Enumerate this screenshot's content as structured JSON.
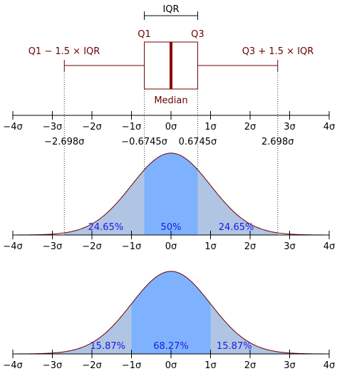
{
  "colors": {
    "dark_red": "#6b0000",
    "median_red": "#8b0000",
    "axis": "#000000",
    "light_blue": "#b0c4e4",
    "mid_blue": "#7eb2ff",
    "pct_text": "#1a1ae6"
  },
  "box_plot": {
    "iqr_label": "IQR",
    "q1_label": "Q1",
    "q3_label": "Q3",
    "lower_whisker_label": "Q1 − 1.5 × IQR",
    "upper_whisker_label": "Q3 + 1.5 × IQR",
    "median_label": "Median",
    "q1_value": -0.6745,
    "q3_value": 0.6745,
    "median_value": 0,
    "lower_whisker_value": -2.698,
    "upper_whisker_value": 2.698
  },
  "value_labels": [
    {
      "x": -2.698,
      "text": "−2.698σ"
    },
    {
      "x": -0.6745,
      "text": "−0.6745σ"
    },
    {
      "x": 0.6745,
      "text": "0.6745σ"
    },
    {
      "x": 2.698,
      "text": "2.698σ"
    }
  ],
  "axis_ticks": [
    {
      "x": -4,
      "label": "−4σ"
    },
    {
      "x": -3,
      "label": "−3σ"
    },
    {
      "x": -2,
      "label": "−2σ"
    },
    {
      "x": -1,
      "label": "−1σ"
    },
    {
      "x": 0,
      "label": "0σ"
    },
    {
      "x": 1,
      "label": "1σ"
    },
    {
      "x": 2,
      "label": "2σ"
    },
    {
      "x": 3,
      "label": "3σ"
    },
    {
      "x": 4,
      "label": "4σ"
    }
  ],
  "quartile_distribution": {
    "inner_range": [
      -0.6745,
      0.6745
    ],
    "outer_range": [
      -2.698,
      2.698
    ],
    "labels": [
      {
        "x": -1.65,
        "text": "24.65%"
      },
      {
        "x": 0,
        "text": "50%"
      },
      {
        "x": 1.65,
        "text": "24.65%"
      }
    ]
  },
  "sigma_distribution": {
    "inner_range": [
      -1,
      1
    ],
    "outer_range": [
      -4,
      4
    ],
    "labels": [
      {
        "x": -1.6,
        "text": "15.87%"
      },
      {
        "x": 0,
        "text": "68.27%"
      },
      {
        "x": 1.6,
        "text": "15.87%"
      }
    ]
  }
}
